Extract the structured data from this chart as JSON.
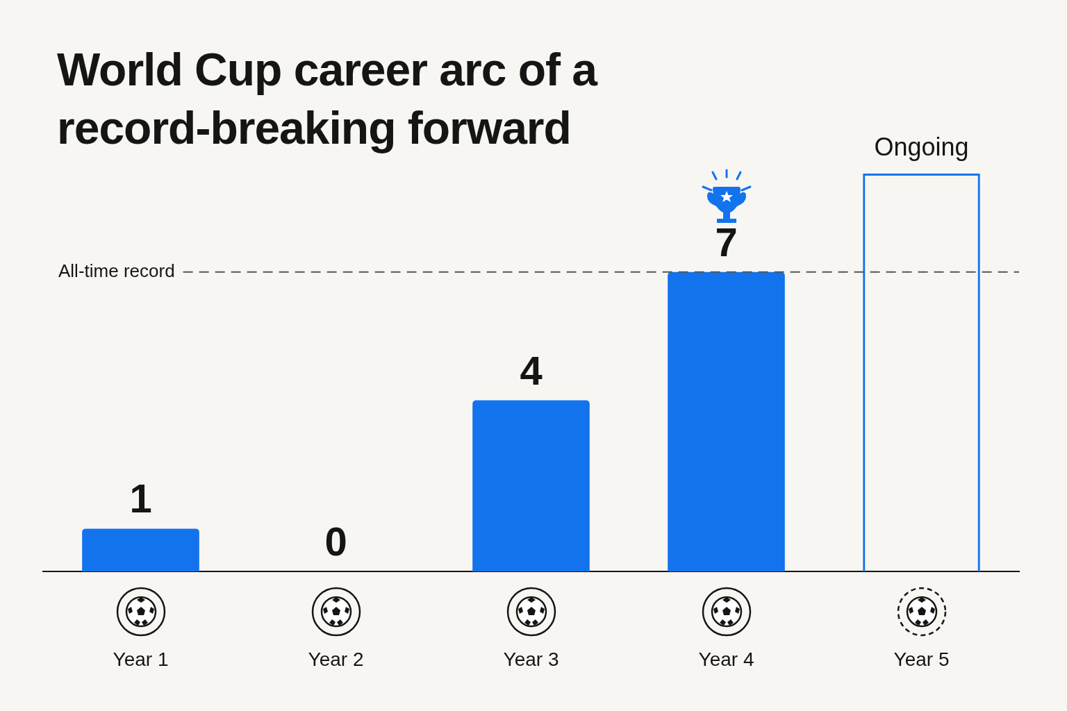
{
  "chart_data": {
    "type": "bar",
    "title": "World Cup career arc of a record-breaking forward",
    "categories": [
      "Year 1",
      "Year 2",
      "Year 3",
      "Year 4",
      "Year 5"
    ],
    "series": [
      {
        "color": "#1273ec",
        "values": [
          1,
          0,
          4,
          7,
          null
        ],
        "value_labels": [
          "1",
          "0",
          "4",
          "7",
          null
        ]
      },
      {
        "color": "#1273ec",
        "line_style": "dashed",
        "values": [
          null,
          null,
          null,
          null,
          9.3
        ],
        "value_labels": [
          null,
          null,
          null,
          null,
          "Ongoing"
        ]
      }
    ],
    "tick_labels": "x",
    "ref_lines": [
      {
        "axis": "y",
        "value": 7,
        "label": "All-time record",
        "color": "#555555",
        "line_style": "dashed"
      }
    ]
  }
}
